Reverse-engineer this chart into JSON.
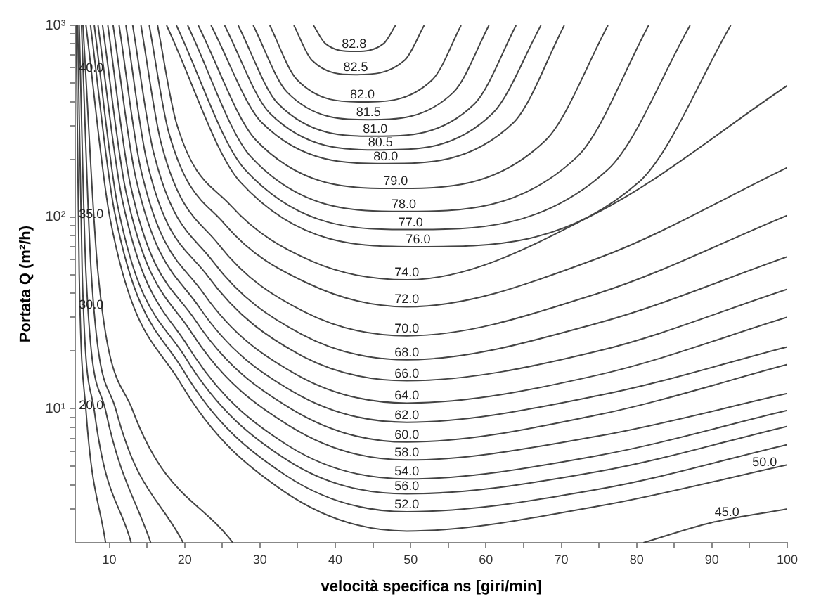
{
  "chart_data": {
    "type": "line",
    "xlabel": "velocità specifica ns [giri/min]",
    "ylabel": "Portata Q (m²/h)",
    "log": "y",
    "marker": "none",
    "line_style": "solid",
    "grid": false,
    "legend": false,
    "xlim": [
      5.5,
      100
    ],
    "ylim": [
      2,
      1000
    ],
    "xticks": [
      10,
      {
        "value": 15,
        "label": null
      },
      20,
      {
        "value": 25,
        "label": null
      },
      30,
      {
        "value": 35,
        "label": null
      },
      40,
      {
        "value": 45,
        "label": null
      },
      50,
      {
        "value": 55,
        "label": null
      },
      60,
      {
        "value": 65,
        "label": null
      },
      70,
      {
        "value": 75,
        "label": null
      },
      80,
      {
        "value": 85,
        "label": null
      },
      90,
      {
        "value": 95,
        "label": null
      },
      100
    ],
    "yticks": [
      {
        "value": 3,
        "label": null
      },
      {
        "value": 4,
        "label": null
      },
      {
        "value": 5,
        "label": null
      },
      {
        "value": 6,
        "label": null
      },
      {
        "value": 7,
        "label": null
      },
      {
        "value": 8,
        "label": null
      },
      {
        "value": 9,
        "label": null
      },
      {
        "value": 10,
        "label": "10¹"
      },
      {
        "value": 20,
        "label": null
      },
      {
        "value": 30,
        "label": null
      },
      {
        "value": 40,
        "label": null
      },
      {
        "value": 50,
        "label": null
      },
      {
        "value": 60,
        "label": null
      },
      {
        "value": 70,
        "label": null
      },
      {
        "value": 80,
        "label": null
      },
      {
        "value": 90,
        "label": null
      },
      {
        "value": 100,
        "label": "10²"
      },
      {
        "value": 200,
        "label": null
      },
      {
        "value": 300,
        "label": null
      },
      {
        "value": 400,
        "label": null
      },
      {
        "value": 500,
        "label": null
      },
      {
        "value": 600,
        "label": null
      },
      {
        "value": 700,
        "label": null
      },
      {
        "value": 800,
        "label": null
      },
      {
        "value": 900,
        "label": null
      },
      {
        "value": 1000,
        "label": "10³"
      }
    ],
    "series": [
      {
        "color": "#444444",
        "x": [
          37.1,
          38.7,
          42.5,
          46.4,
          48.0
        ],
        "values": [
          1000,
          802,
          731,
          802,
          1000
        ]
      },
      {
        "color": "#444444",
        "x": [
          34.5,
          36.9,
          42.7,
          49.2,
          51.8
        ],
        "values": [
          1000,
          657,
          553,
          657,
          1000
        ]
      },
      {
        "color": "#444444",
        "x": [
          31.3,
          34.9,
          43.6,
          52.9,
          56.7
        ],
        "values": [
          1000,
          521,
          398,
          521,
          1000
        ]
      },
      {
        "color": "#444444",
        "x": [
          29.1,
          33.6,
          44.4,
          55.7,
          60.4
        ],
        "values": [
          1000,
          448,
          322,
          448,
          1000
        ]
      },
      {
        "color": "#444444",
        "x": [
          27.1,
          32.4,
          45.3,
          58.5,
          64.0
        ],
        "values": [
          1000,
          390,
          264,
          390,
          1000
        ]
      },
      {
        "color": "#444444",
        "x": [
          25.3,
          31.3,
          46.0,
          60.9,
          67.3
        ],
        "values": [
          1000,
          348,
          224,
          348,
          1000
        ]
      },
      {
        "color": "#444444",
        "x": [
          23.5,
          30.3,
          46.7,
          63.6,
          70.4
        ],
        "values": [
          1000,
          309,
          190,
          309,
          1000
        ]
      },
      {
        "color": "#444444",
        "x": [
          21.8,
          29.5,
          48.0,
          67.9,
          76.2
        ],
        "values": [
          1000,
          251,
          141,
          251,
          1000
        ]
      },
      {
        "color": "#444444",
        "x": [
          20.4,
          28.8,
          49.1,
          72.1,
          81.6
        ],
        "values": [
          1000,
          206,
          107,
          206,
          1000
        ]
      },
      {
        "color": "#444444",
        "x": [
          18.9,
          28.0,
          50.0,
          76.2,
          87.1
        ],
        "values": [
          1000,
          177,
          86,
          177,
          1000
        ]
      },
      {
        "color": "#444444",
        "x": [
          17.6,
          27.4,
          51.0,
          80.3,
          92.5
        ],
        "values": [
          1000,
          152,
          70,
          152,
          1000
        ]
      },
      {
        "color": "#444444",
        "x": [
          16.4,
          18.9,
          26.1,
          36.8,
          49.5,
          74.9,
          100
        ],
        "values": [
          1000,
          310,
          115,
          59,
          47,
          106,
          485
        ]
      },
      {
        "color": "#444444",
        "x": [
          15.3,
          17.9,
          25.3,
          36.4,
          49.5,
          74.9,
          100
        ],
        "values": [
          1000,
          275,
          92,
          45,
          34,
          61,
          181
        ]
      },
      {
        "color": "#444444",
        "x": [
          14.2,
          16.9,
          24.5,
          35.9,
          49.5,
          74.9,
          100
        ],
        "values": [
          1000,
          241,
          72,
          32,
          24,
          40,
          102
        ]
      },
      {
        "color": "#444444",
        "x": [
          13.1,
          15.9,
          23.7,
          35.5,
          49.5,
          74.9,
          100
        ],
        "values": [
          1000,
          215,
          59,
          24.5,
          18,
          28,
          62
        ]
      },
      {
        "color": "#444444",
        "x": [
          12.2,
          15.0,
          23.1,
          35.2,
          49.5,
          74.9,
          100
        ],
        "values": [
          1000,
          194,
          49,
          19.2,
          14,
          20,
          42
        ]
      },
      {
        "color": "#444444",
        "x": [
          11.3,
          14.2,
          22.5,
          34.8,
          49.5,
          74.9,
          100
        ],
        "values": [
          1000,
          176,
          40,
          15.1,
          10.7,
          15,
          30
        ]
      },
      {
        "color": "#444444",
        "x": [
          10.5,
          13.5,
          21.9,
          34.5,
          49.5,
          74.9,
          100
        ],
        "values": [
          1000,
          161,
          34,
          12.2,
          8.5,
          11.7,
          21
        ]
      },
      {
        "color": "#444444",
        "x": [
          9.8,
          12.8,
          21.4,
          34.3,
          49.5,
          74.9,
          100
        ],
        "values": [
          1000,
          147,
          29,
          9.9,
          6.7,
          9.3,
          17
        ]
      },
      {
        "color": "#444444",
        "x": [
          9.1,
          12.2,
          20.9,
          34.0,
          49.5,
          74.9,
          100
        ],
        "values": [
          1000,
          136,
          25,
          8.1,
          5.4,
          7.2,
          12
        ]
      },
      {
        "color": "#444444",
        "x": [
          8.5,
          11.7,
          20.5,
          33.8,
          49.5,
          74.9,
          100
        ],
        "values": [
          1000,
          124,
          21,
          6.4,
          4.3,
          5.7,
          9.8
        ]
      },
      {
        "color": "#444444",
        "x": [
          8.0,
          11.1,
          20.1,
          33.6,
          49.5,
          74.9,
          100
        ],
        "values": [
          1000,
          115,
          18.5,
          5.4,
          3.6,
          4.7,
          8.1
        ]
      },
      {
        "color": "#444444",
        "x": [
          7.5,
          10.7,
          19.8,
          33.4,
          49.5,
          74.9,
          100
        ],
        "values": [
          1000,
          106,
          15.9,
          4.5,
          2.9,
          3.8,
          6.5
        ]
      },
      {
        "color": "#444444",
        "x": [
          6.9,
          10.1,
          19.4,
          33.2,
          49.5,
          74.9,
          100
        ],
        "values": [
          1000,
          98,
          13.7,
          3.7,
          2.3,
          3.1,
          5.1
        ]
      },
      {
        "color": "#444444",
        "x": [
          80.9,
          90,
          100
        ],
        "values": [
          2,
          2.55,
          3.0
        ]
      },
      {
        "color": "#444444",
        "x": [
          6.5,
          8.5,
          13.1,
          26.4
        ],
        "values": [
          1000,
          51,
          9.8,
          2
        ]
      },
      {
        "color": "#444444",
        "x": [
          6.3,
          7.6,
          10.9,
          19.8
        ],
        "values": [
          1000,
          51,
          9.8,
          2
        ]
      },
      {
        "color": "#444444",
        "x": [
          6.0,
          6.9,
          9.5,
          15.5
        ],
        "values": [
          1000,
          51,
          9.8,
          2
        ]
      },
      {
        "color": "#444444",
        "x": [
          5.8,
          6.4,
          8.0,
          12.9
        ],
        "values": [
          1000,
          51,
          9.8,
          2
        ]
      },
      {
        "color": "#444444",
        "x": [
          5.6,
          6.0,
          6.9,
          9.5
        ],
        "values": [
          1000,
          51,
          9.8,
          2
        ]
      }
    ],
    "annotations": [
      {
        "text": "82.8",
        "x": 42.5,
        "y": 731
      },
      {
        "text": "82.5",
        "x": 42.7,
        "y": 553
      },
      {
        "text": "82.0",
        "x": 43.6,
        "y": 398
      },
      {
        "text": "81.5",
        "x": 44.4,
        "y": 322
      },
      {
        "text": "81.0",
        "x": 45.3,
        "y": 264
      },
      {
        "text": "80.5",
        "x": 46.0,
        "y": 224
      },
      {
        "text": "80.0",
        "x": 46.7,
        "y": 190
      },
      {
        "text": "79.0",
        "x": 48.0,
        "y": 141
      },
      {
        "text": "78.0",
        "x": 49.1,
        "y": 107
      },
      {
        "text": "77.0",
        "x": 50.0,
        "y": 86
      },
      {
        "text": "76.0",
        "x": 51.0,
        "y": 70
      },
      {
        "text": "74.0",
        "x": 49.5,
        "y": 47
      },
      {
        "text": "72.0",
        "x": 49.5,
        "y": 34
      },
      {
        "text": "70.0",
        "x": 49.5,
        "y": 24
      },
      {
        "text": "68.0",
        "x": 49.5,
        "y": 18
      },
      {
        "text": "66.0",
        "x": 49.5,
        "y": 14
      },
      {
        "text": "64.0",
        "x": 49.5,
        "y": 10.7
      },
      {
        "text": "62.0",
        "x": 49.5,
        "y": 8.5
      },
      {
        "text": "60.0",
        "x": 49.5,
        "y": 6.7
      },
      {
        "text": "58.0",
        "x": 49.5,
        "y": 5.4
      },
      {
        "text": "54.0",
        "x": 49.5,
        "y": 4.3
      },
      {
        "text": "56.0",
        "x": 49.5,
        "y": 3.6
      },
      {
        "text": "52.0",
        "x": 49.5,
        "y": 2.9
      },
      {
        "text": "50.0",
        "x": 97,
        "y": 4.8
      },
      {
        "text": "45.0",
        "x": 92,
        "y": 2.65
      },
      {
        "text": "40.0",
        "x": 7.6,
        "y": 550
      },
      {
        "text": "35.0",
        "x": 7.6,
        "y": 95
      },
      {
        "text": "30.0",
        "x": 7.6,
        "y": 32
      },
      {
        "text": "20.0",
        "x": 7.6,
        "y": 9.5
      }
    ]
  }
}
